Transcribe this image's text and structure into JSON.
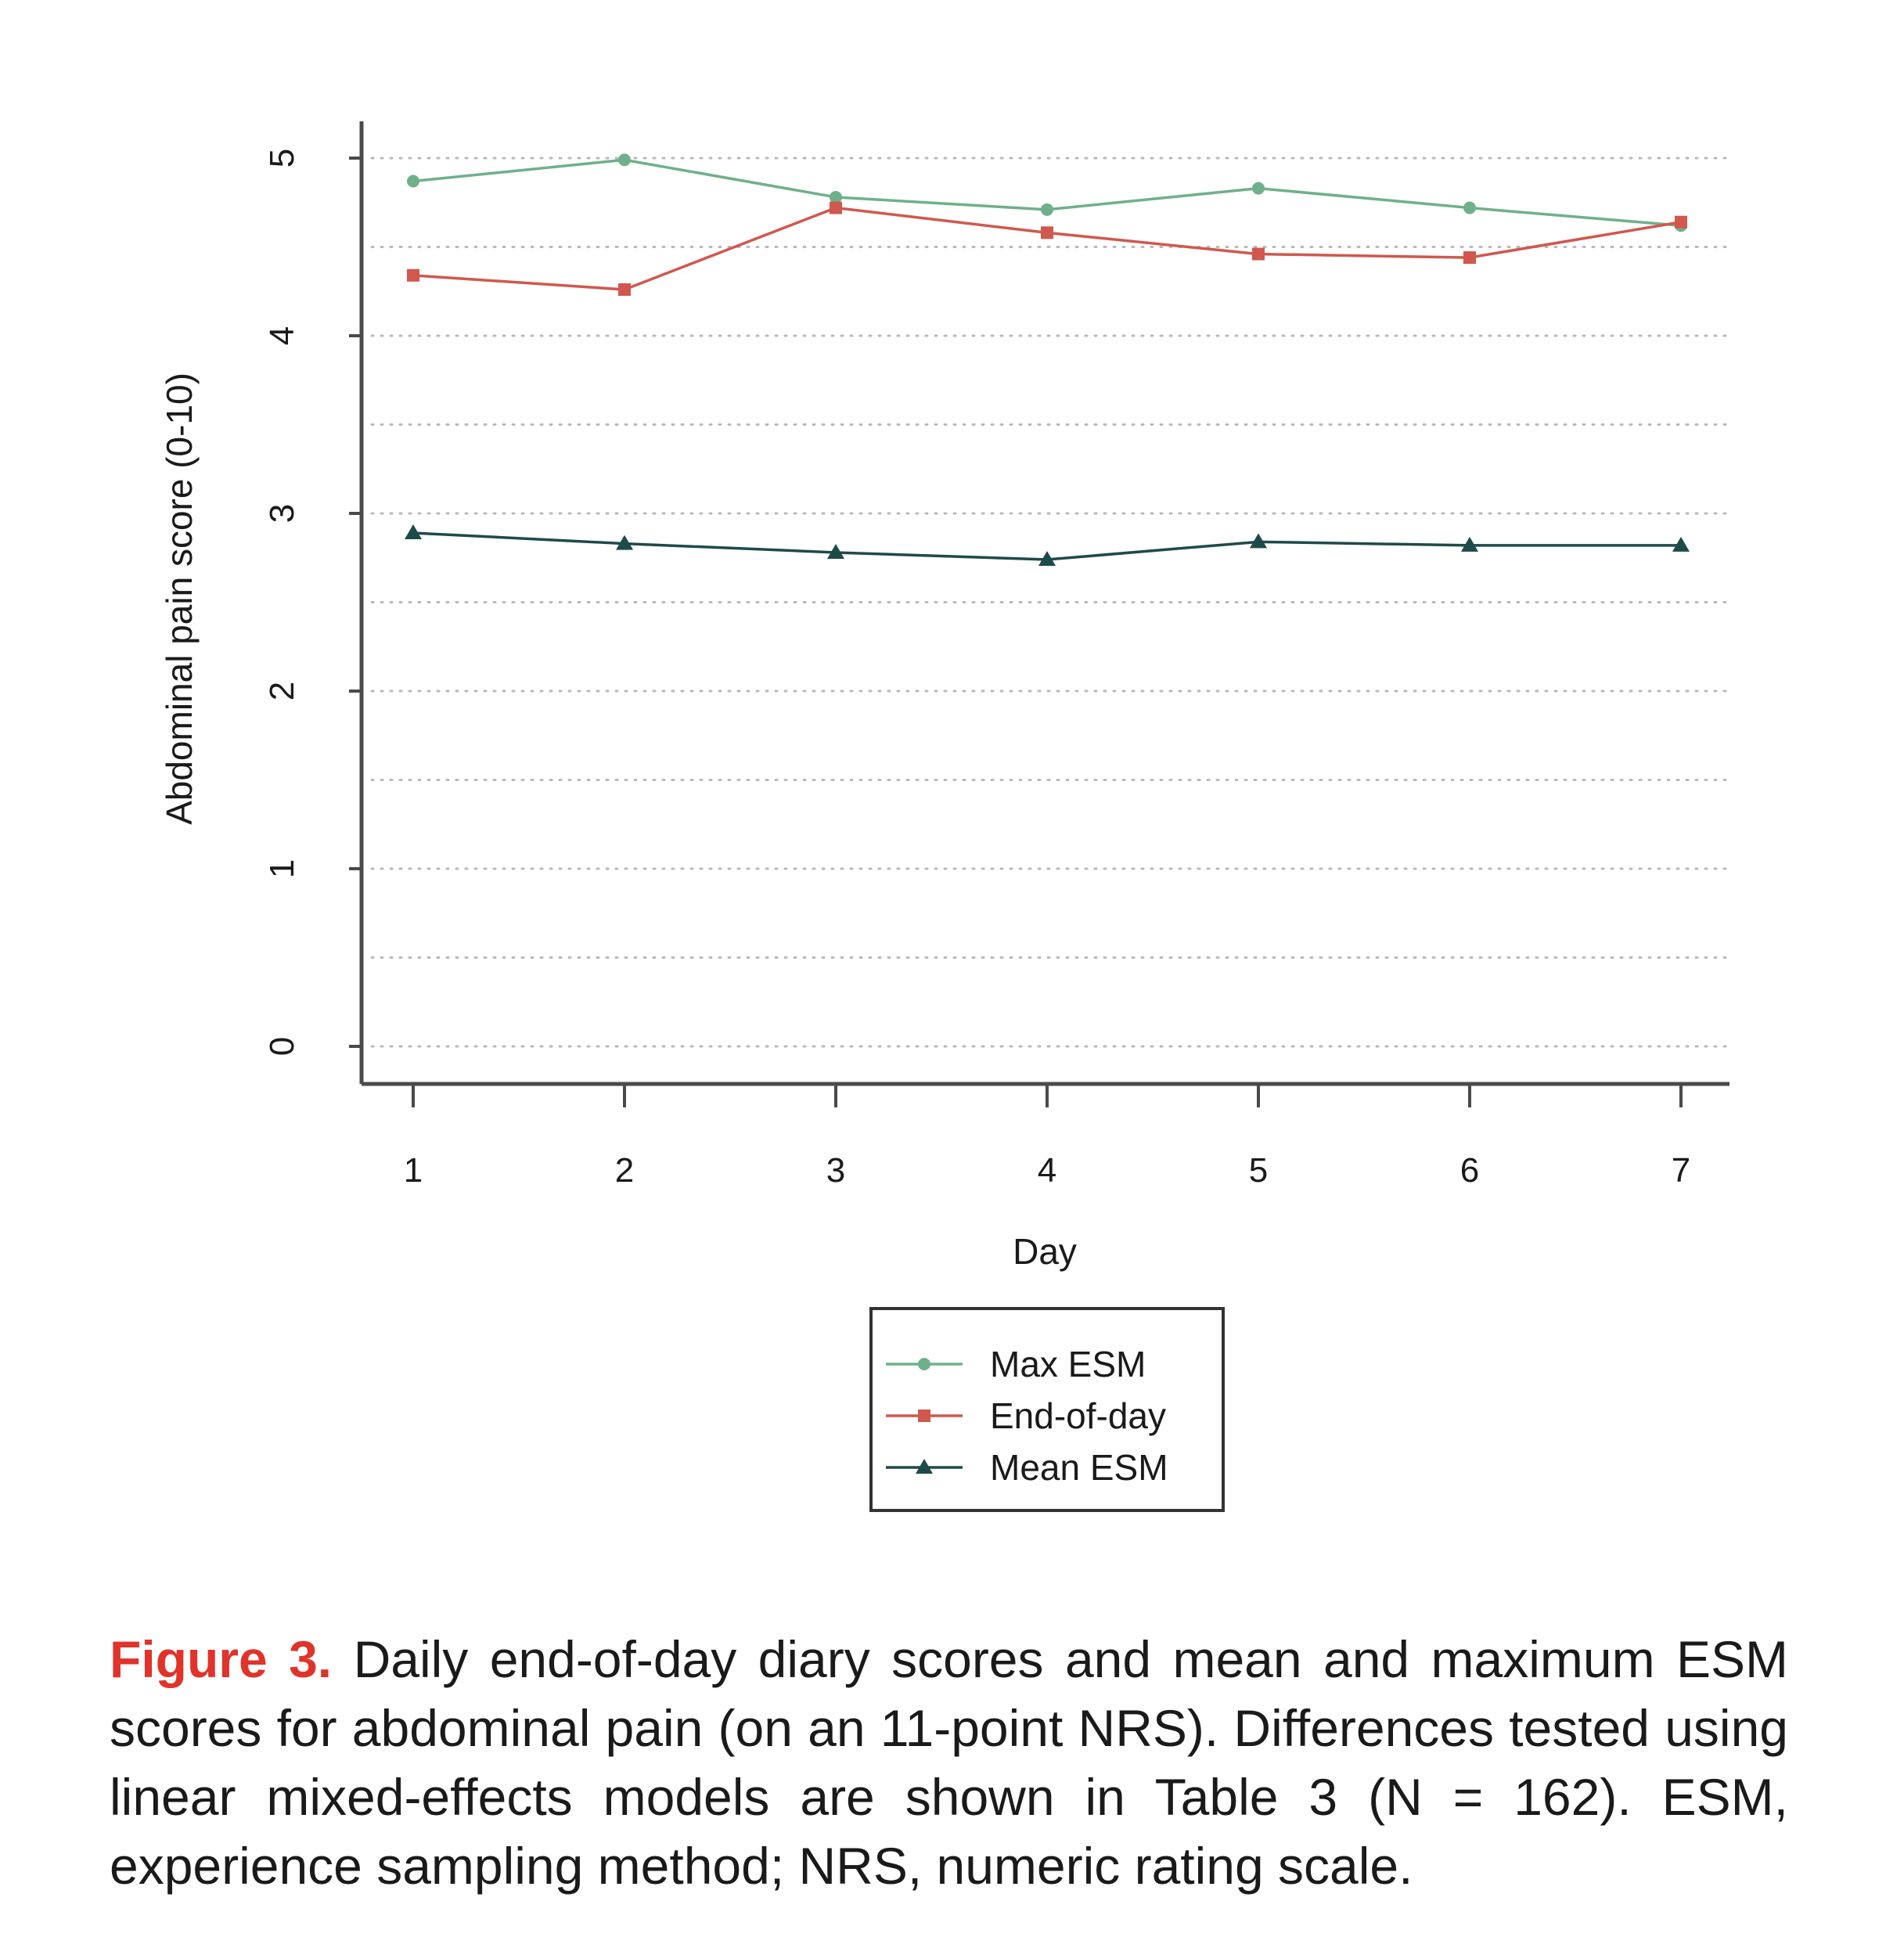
{
  "chart_data": {
    "type": "line",
    "xlabel": "Day",
    "ylabel": "Abdominal pain score (0-10)",
    "x": [
      1,
      2,
      3,
      4,
      5,
      6,
      7
    ],
    "x_tick_labels": [
      "1",
      "2",
      "3",
      "4",
      "5",
      "6",
      "7"
    ],
    "y_tick_labels": [
      "0",
      "1",
      "2",
      "3",
      "4",
      "5"
    ],
    "ylim": [
      0,
      5
    ],
    "grid": "horizontal dotted, every 0.5",
    "legend_position": "bottom-center",
    "series": [
      {
        "name": "Max ESM",
        "color": "#6fb08a",
        "marker": "circle",
        "values": [
          4.87,
          4.99,
          4.78,
          4.71,
          4.83,
          4.72,
          4.62
        ]
      },
      {
        "name": "End-of-day",
        "color": "#d0584e",
        "marker": "square",
        "values": [
          4.34,
          4.26,
          4.72,
          4.58,
          4.46,
          4.44,
          4.64
        ]
      },
      {
        "name": "Mean ESM",
        "color": "#1f4a4a",
        "marker": "triangle",
        "values": [
          2.89,
          2.83,
          2.78,
          2.74,
          2.84,
          2.82,
          2.82
        ]
      }
    ]
  },
  "caption": {
    "label": "Figure 3.",
    "text": "Daily end-of-day diary scores and mean and maximum ESM scores for abdominal pain (on an 11-point NRS). Differences tested using linear mixed-effects models are shown in Table 3 (N = 162). ESM, experience sampling method; NRS, numeric rating scale."
  }
}
